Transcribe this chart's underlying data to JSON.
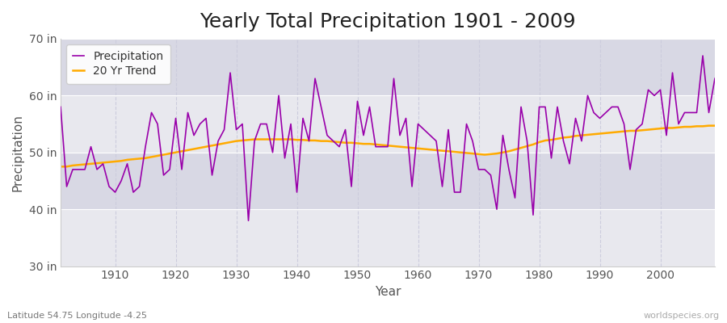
{
  "title": "Yearly Total Precipitation 1901 - 2009",
  "xlabel": "Year",
  "ylabel": "Precipitation",
  "subtitle": "Latitude 54.75 Longitude -4.25",
  "watermark": "worldspecies.org",
  "years": [
    1901,
    1902,
    1903,
    1904,
    1905,
    1906,
    1907,
    1908,
    1909,
    1910,
    1911,
    1912,
    1913,
    1914,
    1915,
    1916,
    1917,
    1918,
    1919,
    1920,
    1921,
    1922,
    1923,
    1924,
    1925,
    1926,
    1927,
    1928,
    1929,
    1930,
    1931,
    1932,
    1933,
    1934,
    1935,
    1936,
    1937,
    1938,
    1939,
    1940,
    1941,
    1942,
    1943,
    1944,
    1945,
    1946,
    1947,
    1948,
    1949,
    1950,
    1951,
    1952,
    1953,
    1954,
    1955,
    1956,
    1957,
    1958,
    1959,
    1960,
    1961,
    1962,
    1963,
    1964,
    1965,
    1966,
    1967,
    1968,
    1969,
    1970,
    1971,
    1972,
    1973,
    1974,
    1975,
    1976,
    1977,
    1978,
    1979,
    1980,
    1981,
    1982,
    1983,
    1984,
    1985,
    1986,
    1987,
    1988,
    1989,
    1990,
    1991,
    1992,
    1993,
    1994,
    1995,
    1996,
    1997,
    1998,
    1999,
    2000,
    2001,
    2002,
    2003,
    2004,
    2005,
    2006,
    2007,
    2008,
    2009
  ],
  "precip": [
    58,
    44,
    47,
    47,
    47,
    51,
    47,
    48,
    44,
    43,
    45,
    48,
    43,
    44,
    51,
    57,
    55,
    46,
    47,
    56,
    47,
    57,
    53,
    55,
    56,
    46,
    52,
    54,
    64,
    54,
    55,
    38,
    52,
    55,
    55,
    50,
    60,
    49,
    55,
    43,
    56,
    52,
    63,
    58,
    53,
    52,
    51,
    54,
    44,
    59,
    53,
    58,
    51,
    51,
    51,
    63,
    53,
    56,
    44,
    55,
    54,
    53,
    52,
    44,
    54,
    43,
    43,
    55,
    52,
    47,
    47,
    46,
    40,
    53,
    47,
    42,
    58,
    52,
    39,
    58,
    58,
    49,
    58,
    52,
    48,
    56,
    52,
    60,
    57,
    56,
    57,
    58,
    58,
    55,
    47,
    54,
    55,
    61,
    60,
    61,
    53,
    64,
    55,
    57,
    57,
    57,
    67,
    57,
    63
  ],
  "trend": [
    47.5,
    47.5,
    47.7,
    47.8,
    47.9,
    48.0,
    48.1,
    48.2,
    48.3,
    48.4,
    48.5,
    48.7,
    48.8,
    48.9,
    49.0,
    49.2,
    49.4,
    49.6,
    49.8,
    50.0,
    50.2,
    50.4,
    50.6,
    50.8,
    51.0,
    51.2,
    51.4,
    51.6,
    51.8,
    52.0,
    52.1,
    52.2,
    52.3,
    52.3,
    52.3,
    52.3,
    52.3,
    52.3,
    52.3,
    52.2,
    52.2,
    52.1,
    52.1,
    52.0,
    52.0,
    51.9,
    51.8,
    51.7,
    51.7,
    51.6,
    51.5,
    51.5,
    51.4,
    51.3,
    51.2,
    51.1,
    51.0,
    50.9,
    50.8,
    50.7,
    50.6,
    50.5,
    50.4,
    50.3,
    50.2,
    50.1,
    50.0,
    49.9,
    49.8,
    49.7,
    49.6,
    49.7,
    49.8,
    50.0,
    50.2,
    50.5,
    50.8,
    51.1,
    51.4,
    51.8,
    52.1,
    52.2,
    52.4,
    52.6,
    52.7,
    52.9,
    53.0,
    53.1,
    53.2,
    53.3,
    53.4,
    53.5,
    53.6,
    53.7,
    53.8,
    53.8,
    53.9,
    54.0,
    54.1,
    54.2,
    54.3,
    54.3,
    54.4,
    54.5,
    54.5,
    54.6,
    54.6,
    54.7,
    54.7
  ],
  "precip_color": "#9900aa",
  "trend_color": "#ffaa00",
  "fig_bg_color": "#ffffff",
  "plot_bg_color": "#e8e8ee",
  "plot_bg_color2": "#d8d8e4",
  "grid_color": "#ffffff",
  "grid_dash_color": "#ccccdd",
  "ylim": [
    30,
    70
  ],
  "yticks": [
    30,
    40,
    50,
    60,
    70
  ],
  "ytick_labels": [
    "30 in",
    "40 in",
    "50 in",
    "60 in",
    "70 in"
  ],
  "xticks": [
    1910,
    1920,
    1930,
    1940,
    1950,
    1960,
    1970,
    1980,
    1990,
    2000
  ],
  "xlim": [
    1901,
    2009
  ],
  "title_fontsize": 18,
  "label_fontsize": 11,
  "tick_fontsize": 10,
  "legend_fontsize": 10
}
